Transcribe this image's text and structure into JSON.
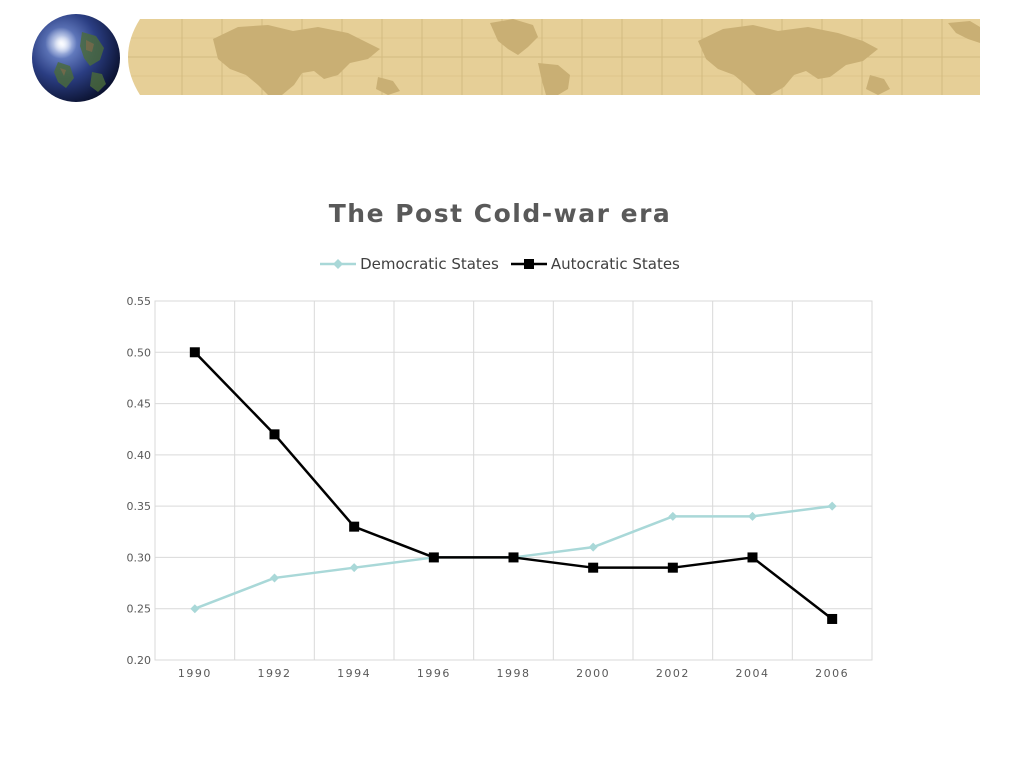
{
  "colors": {
    "democratic": "#a9d8d8",
    "autocratic": "#000000",
    "banner_bg": "#e6cf97",
    "banner_land": "#c9b07a",
    "banner_grid": "#d6bf84",
    "grid": "#d9d9d9",
    "text": "#595959"
  },
  "chart_data": {
    "type": "line",
    "title": "The Post Cold-war era",
    "xlabel": "",
    "ylabel": "",
    "x": [
      1990,
      1992,
      1994,
      1996,
      1998,
      2000,
      2002,
      2004,
      2006
    ],
    "x_tick_labels": [
      "1990",
      "1992",
      "1994",
      "1996",
      "1998",
      "2000",
      "2002",
      "2004",
      "2006"
    ],
    "y_tick_labels": [
      "0.20",
      "0.25",
      "0.30",
      "0.35",
      "0.40",
      "0.45",
      "0.50",
      "0.55"
    ],
    "ylim": [
      0.2,
      0.55
    ],
    "grid": true,
    "legend_position": "top",
    "series": [
      {
        "name": "Democratic States",
        "values": [
          0.25,
          0.28,
          0.29,
          0.3,
          0.3,
          0.31,
          0.34,
          0.34,
          0.35
        ],
        "marker": "diamond"
      },
      {
        "name": "Autocratic States",
        "values": [
          0.5,
          0.42,
          0.33,
          0.3,
          0.3,
          0.29,
          0.29,
          0.3,
          0.24
        ],
        "marker": "square"
      }
    ]
  }
}
